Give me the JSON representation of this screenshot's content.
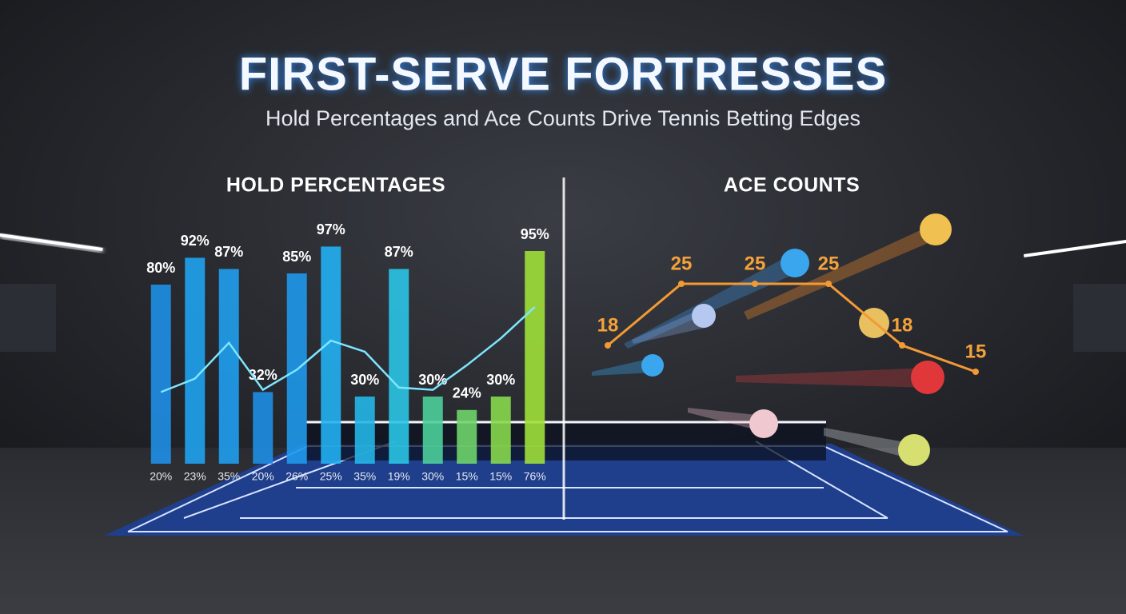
{
  "header": {
    "title": "FIRST-SERVE FORTRESSES",
    "subtitle": "Hold Percentages and Ace Counts Drive Tennis Betting Edges"
  },
  "chart_data": [
    {
      "type": "bar",
      "title": "HOLD PERCENTAGES",
      "categories": [
        "20%",
        "23%",
        "35%",
        "20%",
        "26%",
        "25%",
        "35%",
        "19%",
        "30%",
        "15%",
        "15%",
        "76%"
      ],
      "values": [
        80,
        92,
        87,
        32,
        85,
        97,
        30,
        87,
        30,
        24,
        30,
        95
      ],
      "value_labels": [
        "80%",
        "92%",
        "87%",
        "32%",
        "85%",
        "97%",
        "30%",
        "87%",
        "30%",
        "24%",
        "30%",
        "95%"
      ],
      "colors": [
        "#1e8fe6",
        "#1fa2f0",
        "#1f9fee",
        "#1e8fe4",
        "#1e98ea",
        "#22b0f2",
        "#24b6e8",
        "#2ac4e6",
        "#4ccf9a",
        "#6fd46a",
        "#86d84c",
        "#9ee03a"
      ],
      "line": {
        "color": "#7fe6ff",
        "values": [
          32,
          38,
          54,
          33,
          42,
          55,
          50,
          34,
          33,
          44,
          56,
          70
        ]
      },
      "ylim": [
        0,
        100
      ]
    },
    {
      "type": "line",
      "title": "ACE COUNTS",
      "values": [
        18,
        25,
        25,
        25,
        18,
        15
      ],
      "color": "#f39a34",
      "ylim": [
        10,
        30
      ]
    }
  ]
}
